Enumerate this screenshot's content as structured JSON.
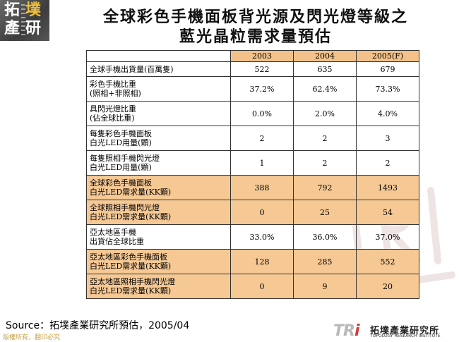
{
  "logo": {
    "chars": [
      "拓",
      "墣",
      "產",
      "研"
    ]
  },
  "title": {
    "line1": "全球彩色手機面板背光源及閃光燈等級之",
    "line2": "藍光晶粒需求量預估"
  },
  "table": {
    "columns": [
      "2003",
      "2004",
      "2005(F)"
    ],
    "rows": [
      {
        "label": [
          "全球手機出貨量(百萬隻)"
        ],
        "values": [
          "522",
          "635",
          "679"
        ],
        "highlight": false
      },
      {
        "label": [
          "彩色手機比重",
          "(照相+非照相)"
        ],
        "values": [
          "37.2%",
          "62.4%",
          "73.3%"
        ],
        "highlight": false
      },
      {
        "label": [
          "具閃光燈比重",
          "(佔全球比重)"
        ],
        "values": [
          "0.0%",
          "2.0%",
          "4.0%"
        ],
        "highlight": false
      },
      {
        "label": [
          "每隻彩色手機面板",
          "白光LED用量(顆)"
        ],
        "values": [
          "2",
          "2",
          "3"
        ],
        "highlight": false
      },
      {
        "label": [
          "每隻照相手機閃光燈",
          "白光LED用量(顆)"
        ],
        "values": [
          "1",
          "2",
          "2"
        ],
        "highlight": false
      },
      {
        "label": [
          "全球彩色手機面板",
          "白光LED需求量(KK顆)"
        ],
        "values": [
          "388",
          "792",
          "1493"
        ],
        "highlight": true
      },
      {
        "label": [
          "全球照相手機閃光燈",
          "白光LED需求量(KK顆)"
        ],
        "values": [
          "0",
          "25",
          "54"
        ],
        "highlight": true
      },
      {
        "label": [
          "亞太地區手機",
          "出貨佔全球比重"
        ],
        "values": [
          "33.0%",
          "36.0%",
          "37.0%"
        ],
        "highlight": false
      },
      {
        "label": [
          "亞太地區彩色手機面板",
          "白光LED需求量(KK顆)"
        ],
        "values": [
          "128",
          "285",
          "552"
        ],
        "highlight": true
      },
      {
        "label": [
          "亞太地區照相手機閃光燈",
          "白光LED需求量(KK顆)"
        ],
        "values": [
          "0",
          "9",
          "20"
        ],
        "highlight": true
      }
    ]
  },
  "source": "Source：拓墣產業研究所預估，2005/04",
  "copyright": "版權所有，翻印必究",
  "footer": {
    "mark_left": "TR",
    "mark_right": "i",
    "org_cn": "拓墣產業研究所",
    "org_en": "TOPOLOGY RESEARCH INSTITUTE"
  },
  "colors": {
    "header_fill": "#f2c28a",
    "highlight_fill": "#f5c894",
    "logo_accent": "#f0c23a",
    "tri_red": "#d23a3a"
  }
}
